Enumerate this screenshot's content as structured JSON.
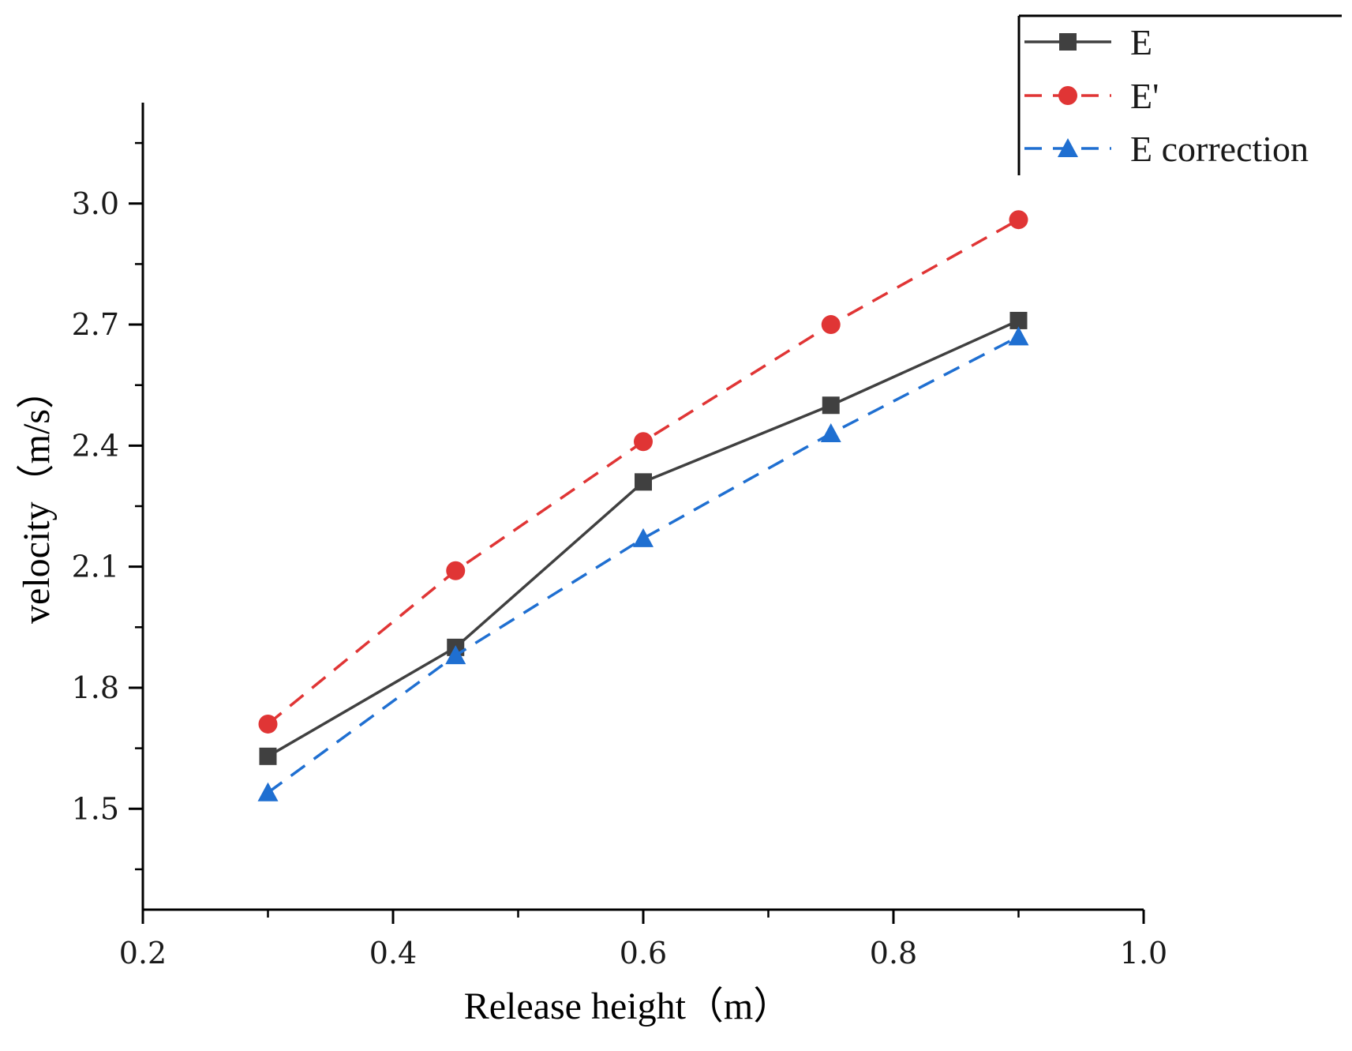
{
  "chart_data": {
    "type": "line",
    "title": "",
    "xlabel": "Release height（m）",
    "ylabel": "velocity（m/s）",
    "xlim": [
      0.2,
      1.0
    ],
    "ylim": [
      1.25,
      3.25
    ],
    "x_ticks": [
      "0.2",
      "0.4",
      "0.6",
      "0.8",
      "1.0"
    ],
    "y_ticks": [
      "1.5",
      "1.8",
      "2.1",
      "2.4",
      "2.7",
      "3.0"
    ],
    "grid": false,
    "legend_position": "top-right",
    "x": [
      0.3,
      0.45,
      0.6,
      0.75,
      0.9
    ],
    "series": [
      {
        "name": "E",
        "values": [
          1.63,
          1.9,
          2.31,
          2.5,
          2.71
        ],
        "color": "#404040",
        "marker": "square",
        "line_style": "solid"
      },
      {
        "name": "E'",
        "values": [
          1.71,
          2.09,
          2.41,
          2.7,
          2.96
        ],
        "color": "#e03535",
        "marker": "circle",
        "line_style": "dashed"
      },
      {
        "name": "E correction",
        "values": [
          1.54,
          1.88,
          2.17,
          2.43,
          2.67
        ],
        "color": "#1f6fd1",
        "marker": "triangle",
        "line_style": "dashed"
      }
    ]
  }
}
